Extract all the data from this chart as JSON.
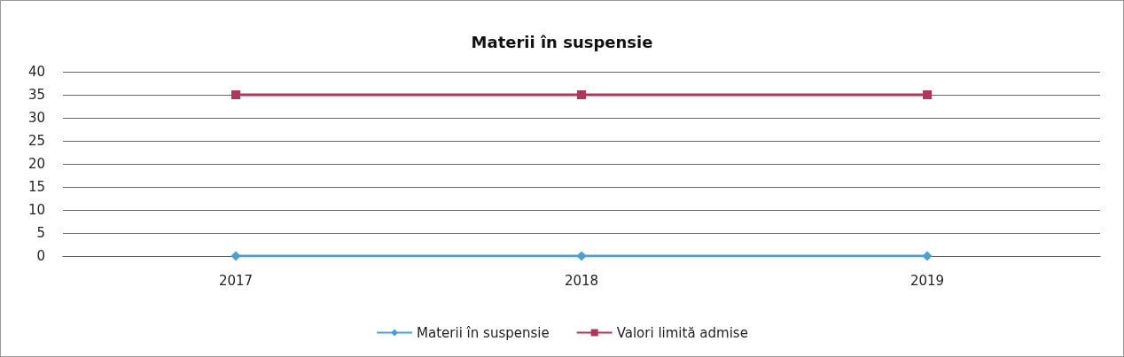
{
  "chart_data": {
    "type": "line",
    "title": "Materii în suspensie",
    "categories": [
      "2017",
      "2018",
      "2019"
    ],
    "series": [
      {
        "name": "Materii în suspensie",
        "color": "#4a9fd4",
        "values": [
          0,
          0,
          0
        ],
        "marker": "diamond"
      },
      {
        "name": "Valori limită admise",
        "color": "#b0365a",
        "values": [
          35,
          35,
          35
        ],
        "marker": "square"
      }
    ],
    "ylim": [
      0,
      40
    ],
    "yticks": [
      0,
      5,
      10,
      15,
      20,
      25,
      30,
      35,
      40
    ],
    "grid": "y",
    "legend": "bottom"
  }
}
